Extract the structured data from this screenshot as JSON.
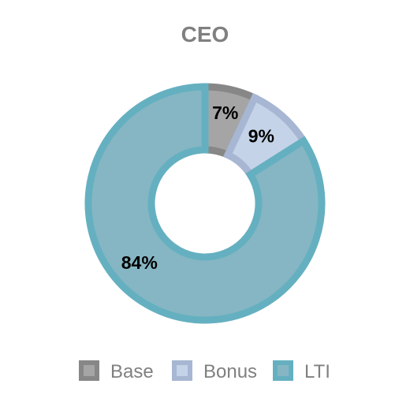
{
  "chart_data": {
    "type": "pie",
    "title": "CEO",
    "donut": true,
    "legend_position": "bottom",
    "series": [
      {
        "name": "Base",
        "value": 7,
        "label": "7%",
        "fill": "#a5a5a5",
        "stroke": "#878787"
      },
      {
        "name": "Bonus",
        "value": 9,
        "label": "9%",
        "fill": "#c5d3e8",
        "stroke": "#a7b6d2"
      },
      {
        "name": "LTI",
        "value": 84,
        "label": "84%",
        "fill": "#86b6c3",
        "stroke": "#65b0c0"
      }
    ]
  }
}
